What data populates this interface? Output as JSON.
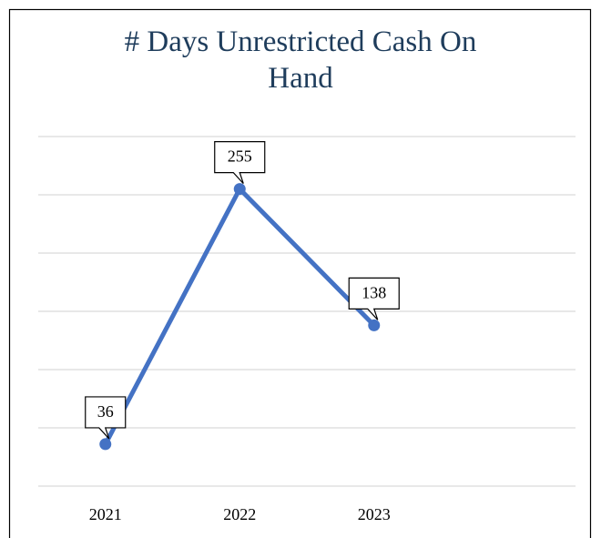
{
  "chart_data": {
    "type": "line",
    "title": "# Days Unrestricted Cash On Hand",
    "categories": [
      "2021",
      "2022",
      "2023",
      null
    ],
    "values": [
      36,
      255,
      138,
      null
    ],
    "color": "#4472c4",
    "ylim": [
      0,
      300
    ],
    "yticks": [
      0,
      50,
      100,
      150,
      200,
      250,
      300
    ],
    "grid": true
  }
}
